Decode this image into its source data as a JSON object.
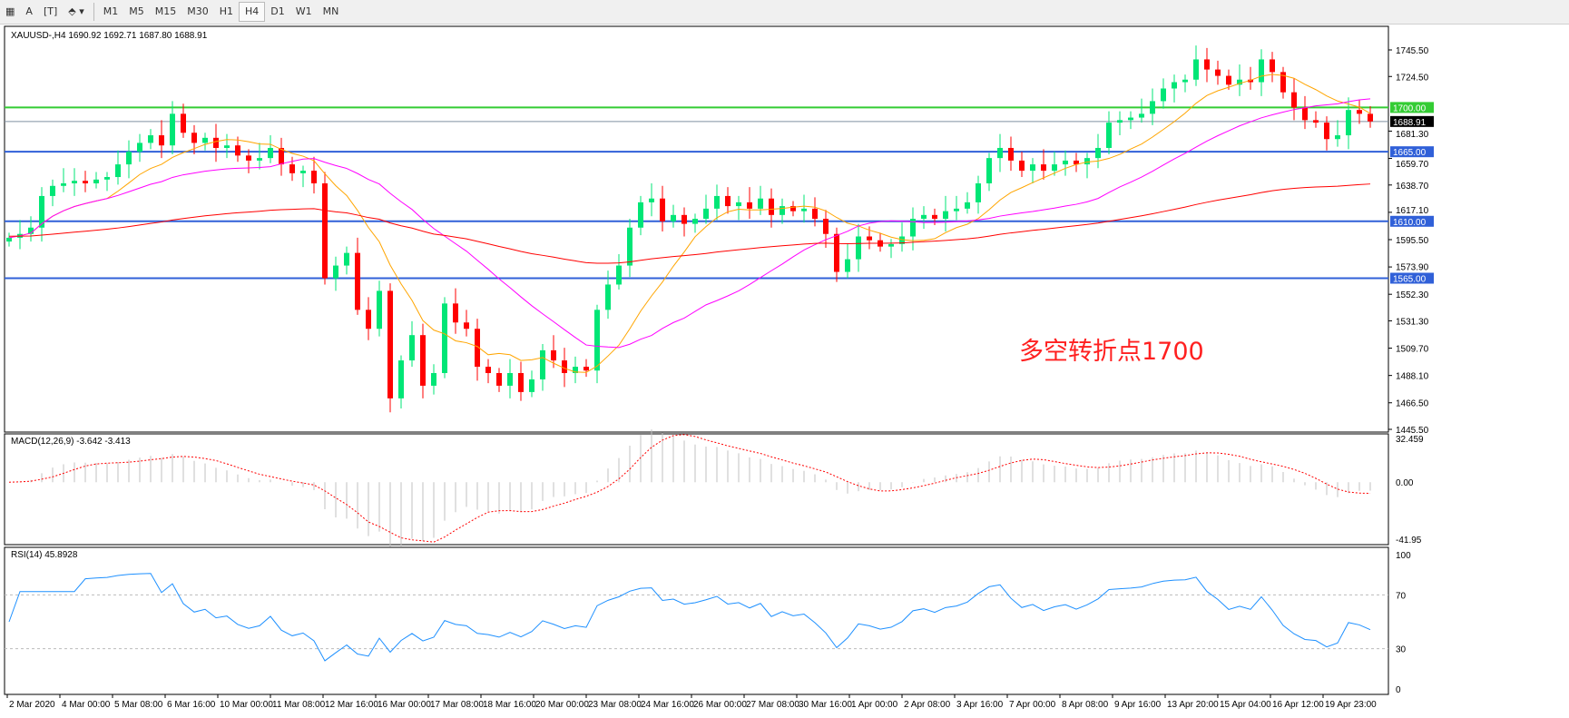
{
  "toolbar": {
    "icons": [
      "grid-icon",
      "text-a-icon",
      "text-label-icon",
      "arrows-icon"
    ],
    "timeframes": [
      "M1",
      "M5",
      "M15",
      "M30",
      "H1",
      "H4",
      "D1",
      "W1",
      "MN"
    ],
    "active_timeframe": "H4"
  },
  "header": {
    "symbol": "XAUUSD-,H4",
    "ohlc": "1690.92 1692.71 1687.80 1688.91"
  },
  "annotation": "多空转折点1700",
  "colors": {
    "bull": "#00e676",
    "bear": "#ff0000",
    "ma_fast": "#ffa500",
    "ma_mid": "#ff00ff",
    "ma_slow": "#ff0000",
    "hline_blue": "#3060d8",
    "hline_green": "#33cc33",
    "rsi": "#1e90ff",
    "macd_signal": "#ff0000",
    "macd_hist": "#c0c0c0"
  },
  "chart_data": {
    "type": "candlestick",
    "ylim": [
      1445.5,
      1745.5
    ],
    "price_ticks": [
      "1745.50",
      "1724.50",
      "1681.30",
      "1659.70",
      "1638.70",
      "1617.10",
      "1595.50",
      "1573.90",
      "1552.30",
      "1531.30",
      "1509.70",
      "1488.10",
      "1466.50",
      "1445.50"
    ],
    "levels": [
      {
        "value": 1700.0,
        "label": "1700.00",
        "color": "green"
      },
      {
        "value": 1665.0,
        "label": "1665.00",
        "color": "blue"
      },
      {
        "value": 1610.0,
        "label": "1610.00",
        "color": "blue"
      },
      {
        "value": 1565.0,
        "label": "1565.00",
        "color": "blue"
      }
    ],
    "current_price": {
      "value": 1688.91,
      "label": "1688.91"
    },
    "closes": [
      1597,
      1600,
      1605,
      1630,
      1638,
      1640,
      1642,
      1640,
      1643,
      1645,
      1655,
      1665,
      1672,
      1678,
      1670,
      1695,
      1680,
      1672,
      1676,
      1668,
      1670,
      1662,
      1658,
      1660,
      1668,
      1655,
      1648,
      1650,
      1640,
      1565,
      1575,
      1585,
      1540,
      1525,
      1555,
      1470,
      1500,
      1520,
      1480,
      1490,
      1545,
      1530,
      1525,
      1495,
      1490,
      1480,
      1490,
      1475,
      1485,
      1508,
      1500,
      1490,
      1495,
      1492,
      1540,
      1560,
      1575,
      1605,
      1625,
      1628,
      1610,
      1615,
      1608,
      1612,
      1620,
      1630,
      1622,
      1625,
      1620,
      1628,
      1615,
      1622,
      1618,
      1620,
      1612,
      1600,
      1570,
      1580,
      1598,
      1595,
      1590,
      1592,
      1598,
      1612,
      1615,
      1612,
      1618,
      1620,
      1625,
      1640,
      1660,
      1668,
      1658,
      1650,
      1655,
      1650,
      1655,
      1658,
      1655,
      1660,
      1668,
      1688,
      1690,
      1692,
      1695,
      1705,
      1715,
      1720,
      1722,
      1738,
      1730,
      1725,
      1718,
      1722,
      1720,
      1738,
      1728,
      1712,
      1700,
      1690,
      1688,
      1675,
      1678,
      1698,
      1695,
      1689
    ],
    "x_labels": [
      "2 Mar 2020",
      "4 Mar 00:00",
      "5 Mar 08:00",
      "6 Mar 16:00",
      "10 Mar 00:00",
      "11 Mar 08:00",
      "12 Mar 16:00",
      "16 Mar 00:00",
      "17 Mar 08:00",
      "18 Mar 16:00",
      "20 Mar 00:00",
      "23 Mar 08:00",
      "24 Mar 16:00",
      "26 Mar 00:00",
      "27 Mar 08:00",
      "30 Mar 16:00",
      "1 Apr 00:00",
      "2 Apr 08:00",
      "3 Apr 16:00",
      "7 Apr 00:00",
      "8 Apr 08:00",
      "9 Apr 16:00",
      "13 Apr 20:00",
      "15 Apr 04:00",
      "16 Apr 12:00",
      "19 Apr 23:00"
    ],
    "macd": {
      "label": "MACD(12,26,9) -3.642 -3.413",
      "ylim": [
        -41.95,
        32.459
      ],
      "ticks": [
        "32.459",
        "0.00",
        "-41.95"
      ]
    },
    "rsi": {
      "label": "RSI(14) 45.8928",
      "ylim": [
        0,
        100
      ],
      "ticks": [
        "100",
        "70",
        "30",
        "0"
      ],
      "levels": [
        30,
        70
      ]
    }
  }
}
